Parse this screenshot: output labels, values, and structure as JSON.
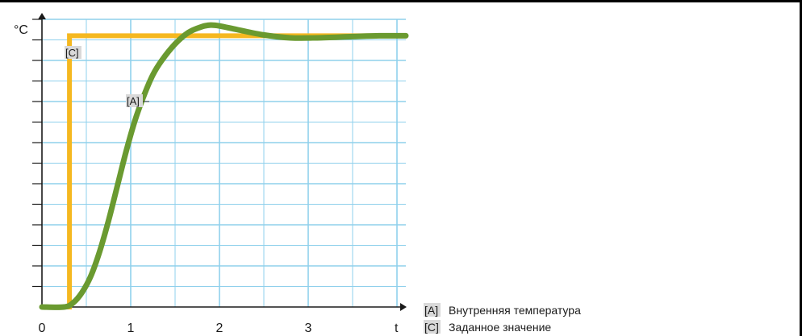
{
  "chart_data": {
    "type": "line",
    "ylabel": "°C",
    "xlabel": "t",
    "xlim": [
      0,
      4.1
    ],
    "ylim": [
      0,
      7
    ],
    "x_ticks": [
      0,
      1,
      2,
      3
    ],
    "x_tick_labels": [
      "0",
      "1",
      "2",
      "3"
    ],
    "grid": true,
    "legend_position": "bottom-right",
    "series": [
      {
        "key": "A",
        "tag": "[A]",
        "name": "Внутренняя температура",
        "color": "#6a9a30",
        "x": [
          0,
          0.25,
          0.35,
          0.45,
          0.55,
          0.65,
          0.75,
          0.85,
          0.95,
          1.05,
          1.15,
          1.25,
          1.35,
          1.5,
          1.65,
          1.8,
          1.9,
          2.0,
          2.2,
          2.5,
          2.8,
          3.1,
          3.5,
          3.8,
          4.1
        ],
        "y": [
          0,
          0,
          0.1,
          0.35,
          0.75,
          1.35,
          2.1,
          2.95,
          3.8,
          4.55,
          5.15,
          5.65,
          6.0,
          6.4,
          6.68,
          6.82,
          6.86,
          6.84,
          6.75,
          6.62,
          6.55,
          6.55,
          6.58,
          6.6,
          6.6
        ]
      },
      {
        "key": "C",
        "tag": "[C]",
        "name": "Заданное значение",
        "color": "#f5b820",
        "x": [
          0,
          0.31,
          0.31,
          4.1
        ],
        "y": [
          0,
          0,
          6.6,
          6.6
        ]
      }
    ]
  }
}
